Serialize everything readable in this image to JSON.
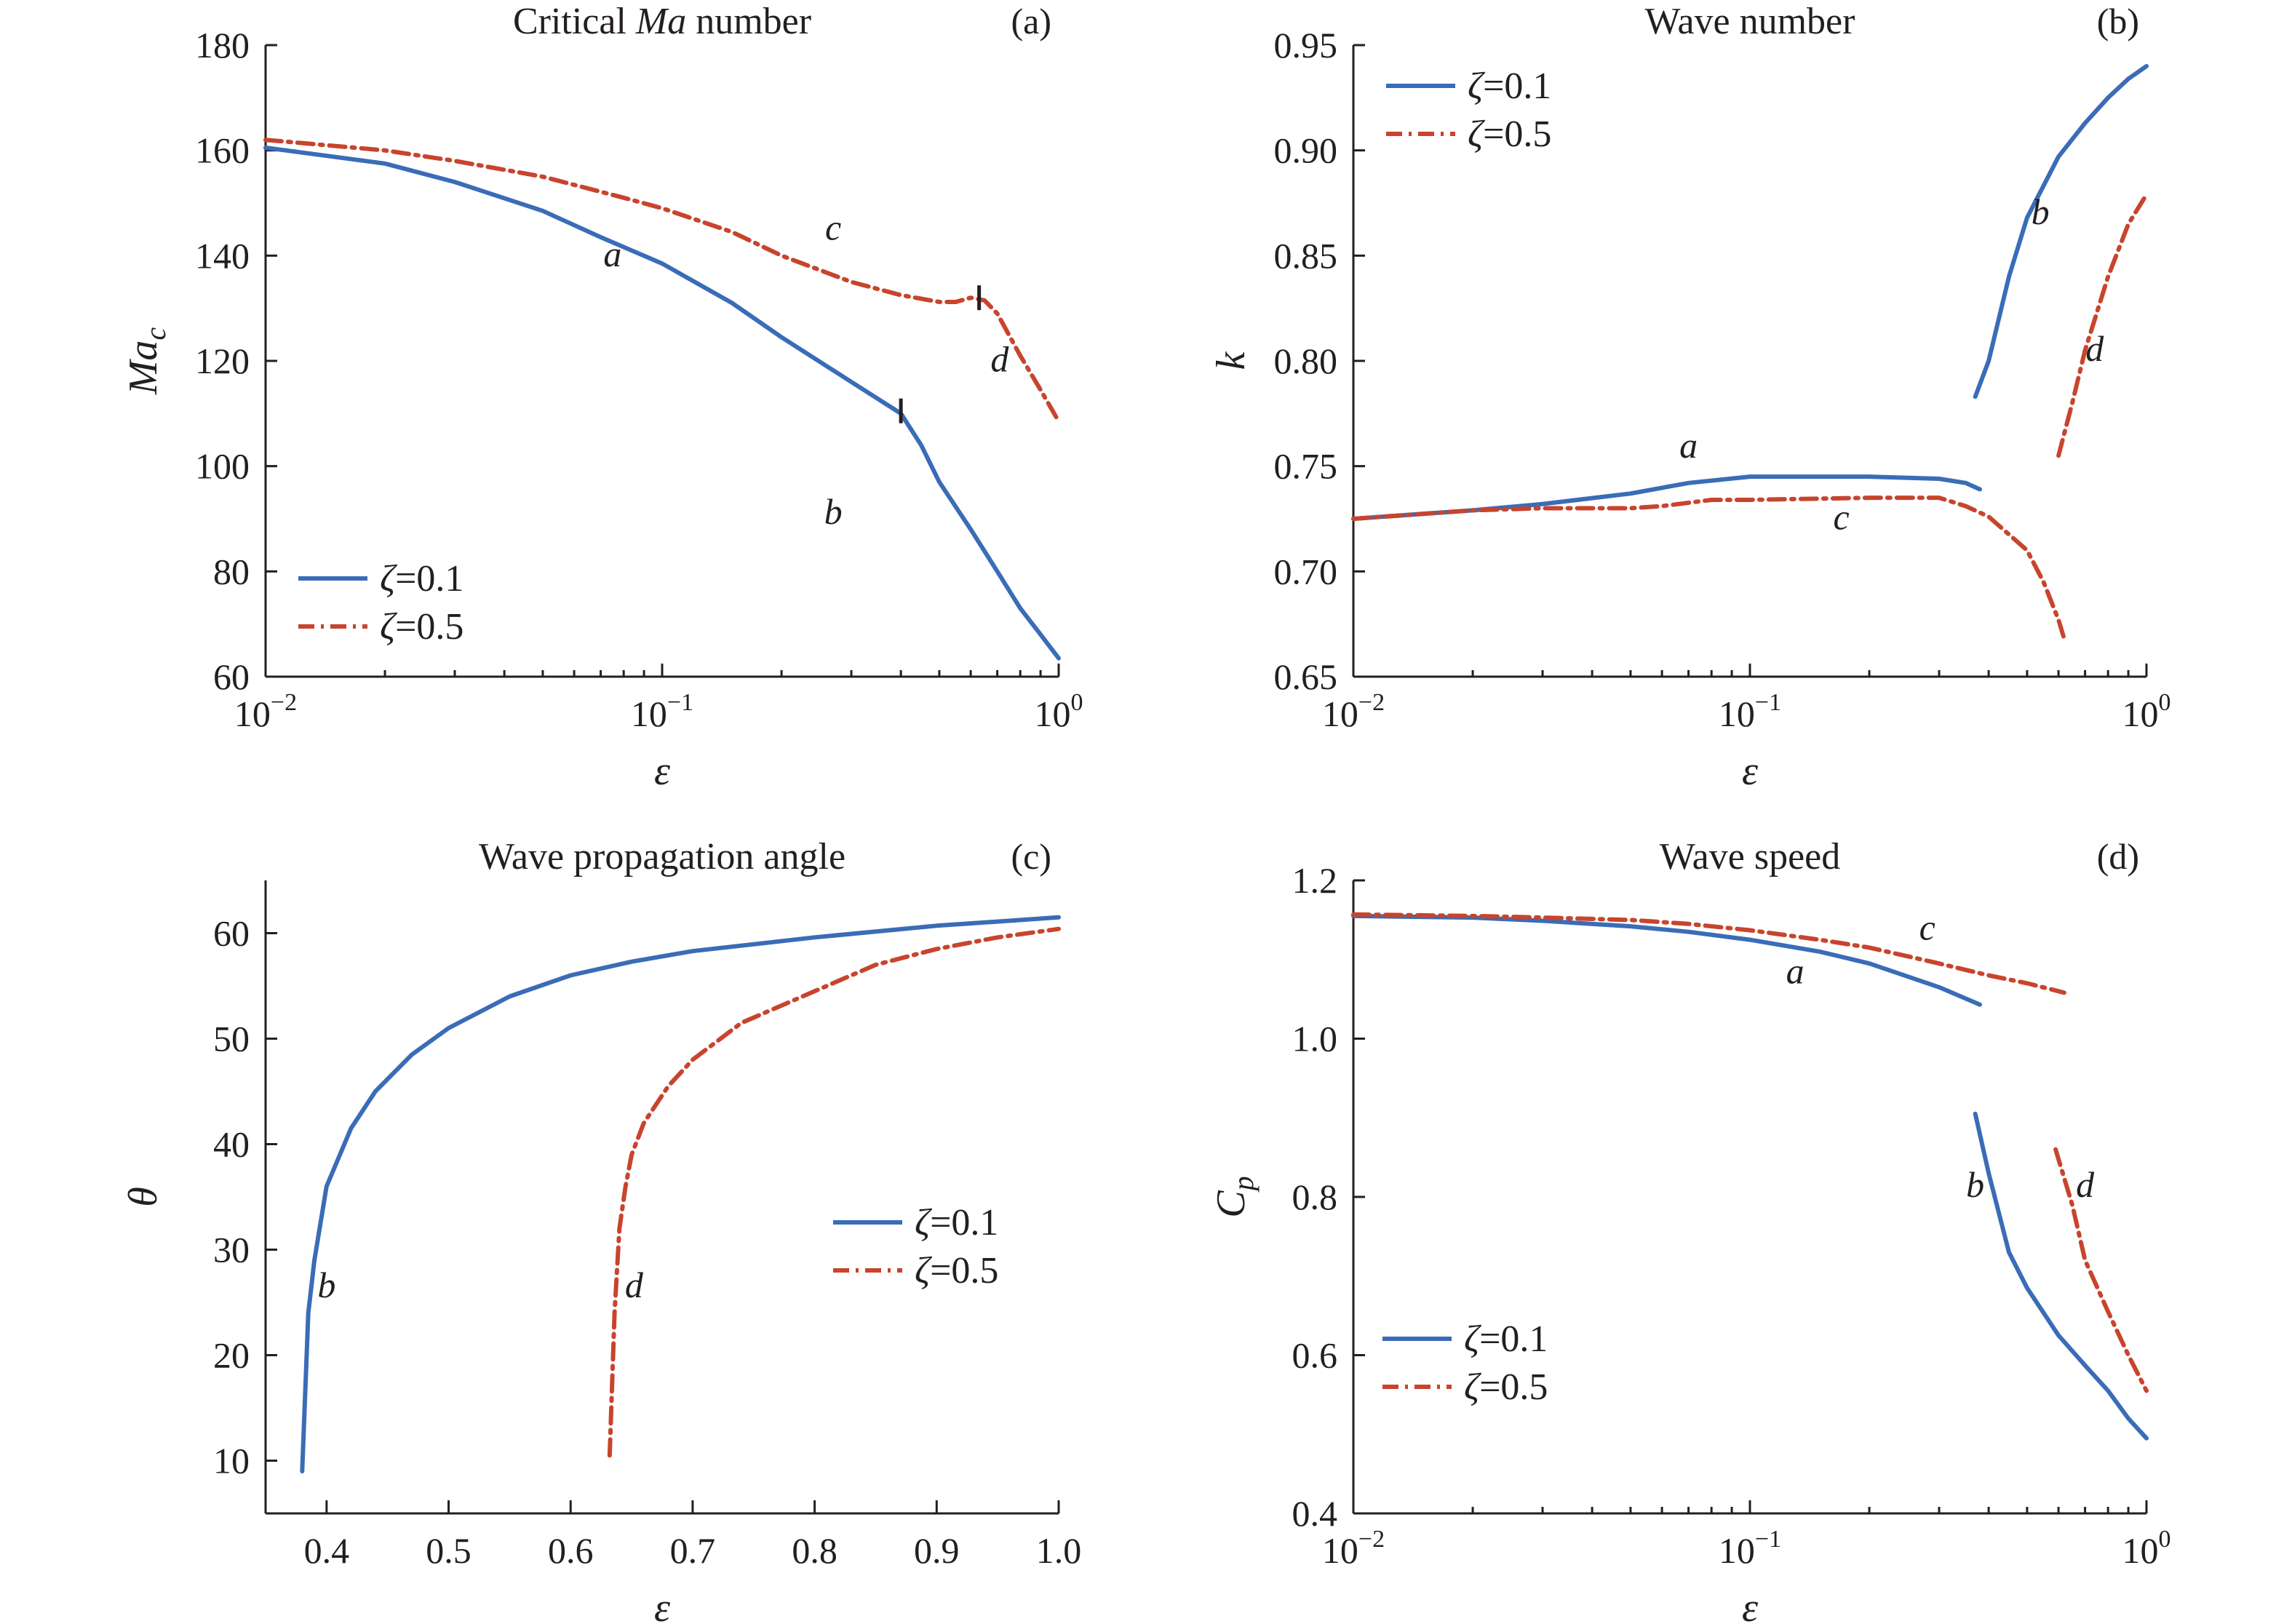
{
  "colors": {
    "zeta_0_1": "#3a6cb7",
    "zeta_0_5": "#c8442c",
    "axis": "#231f20"
  },
  "chart_data": [
    {
      "id": "a",
      "type": "line",
      "title_parts": [
        "Critical ",
        "Ma",
        " number"
      ],
      "panel_tag": "(a)",
      "xlabel": "ε",
      "ylabel": "Ma",
      "ylabel_sub": "c",
      "xscale": "log",
      "xlim": [
        0.01,
        1
      ],
      "ylim": [
        60,
        180
      ],
      "xticks": [
        {
          "value": 0.01,
          "base": "10",
          "exp": "−2"
        },
        {
          "value": 0.1,
          "base": "10",
          "exp": "−1"
        },
        {
          "value": 1,
          "base": "10",
          "exp": "0"
        }
      ],
      "yticks": [
        60,
        80,
        100,
        120,
        140,
        160,
        180
      ],
      "legend": {
        "position": "bottom-left",
        "entries": [
          "ζ=0.1",
          "ζ=0.5"
        ]
      },
      "series": [
        {
          "name": "ζ=0.1",
          "style": "solid",
          "segments": [
            [
              [
                0.01,
                160.5
              ],
              [
                0.02,
                157.5
              ],
              [
                0.03,
                154
              ],
              [
                0.05,
                148.5
              ],
              [
                0.07,
                143.5
              ],
              [
                0.1,
                138.5
              ],
              [
                0.15,
                131
              ],
              [
                0.2,
                124.5
              ],
              [
                0.3,
                116
              ],
              [
                0.4,
                110
              ],
              [
                0.45,
                104
              ],
              [
                0.5,
                97
              ],
              [
                0.6,
                88
              ],
              [
                0.7,
                80
              ],
              [
                0.8,
                73
              ],
              [
                0.9,
                68
              ],
              [
                1.0,
                63.5
              ]
            ]
          ]
        },
        {
          "name": "ζ=0.5",
          "style": "dashdot",
          "segments": [
            [
              [
                0.01,
                162
              ],
              [
                0.02,
                160
              ],
              [
                0.03,
                158
              ],
              [
                0.05,
                155
              ],
              [
                0.08,
                151
              ],
              [
                0.1,
                149
              ],
              [
                0.15,
                144.5
              ],
              [
                0.2,
                140
              ],
              [
                0.3,
                135
              ],
              [
                0.4,
                132.5
              ],
              [
                0.5,
                131.2
              ],
              [
                0.55,
                131.2
              ],
              [
                0.6,
                132
              ],
              [
                0.65,
                131.5
              ],
              [
                0.7,
                129
              ],
              [
                0.8,
                121
              ],
              [
                0.9,
                114.5
              ],
              [
                1.0,
                108.5
              ]
            ]
          ]
        }
      ],
      "markers": [
        {
          "x": 0.4,
          "y": 110.5
        },
        {
          "x": 0.63,
          "y": 132
        }
      ],
      "curve_labels": [
        {
          "text": "a",
          "x": 0.075,
          "y": 138
        },
        {
          "text": "b",
          "x": 0.27,
          "y": 89
        },
        {
          "text": "c",
          "x": 0.27,
          "y": 143
        },
        {
          "text": "d",
          "x": 0.71,
          "y": 118
        }
      ]
    },
    {
      "id": "b",
      "type": "line",
      "title_parts": [
        "Wave number"
      ],
      "panel_tag": "(b)",
      "xlabel": "ε",
      "ylabel": "k",
      "ylabel_sub": "",
      "xscale": "log",
      "xlim": [
        0.01,
        1
      ],
      "ylim": [
        0.65,
        0.95
      ],
      "xticks": [
        {
          "value": 0.01,
          "base": "10",
          "exp": "−2"
        },
        {
          "value": 0.1,
          "base": "10",
          "exp": "−1"
        },
        {
          "value": 1,
          "base": "10",
          "exp": "0"
        }
      ],
      "yticks": [
        0.65,
        0.7,
        0.75,
        0.8,
        0.85,
        0.9,
        0.95
      ],
      "ytick_labels": [
        "0.65",
        "0.70",
        "0.75",
        "0.80",
        "0.85",
        "0.90",
        "0.95"
      ],
      "legend": {
        "position": "top-left",
        "entries": [
          "ζ=0.1",
          "ζ=0.5"
        ]
      },
      "series": [
        {
          "name": "ζ=0.1",
          "style": "solid",
          "segments": [
            [
              [
                0.01,
                0.725
              ],
              [
                0.02,
                0.729
              ],
              [
                0.03,
                0.732
              ],
              [
                0.05,
                0.737
              ],
              [
                0.07,
                0.742
              ],
              [
                0.1,
                0.745
              ],
              [
                0.2,
                0.745
              ],
              [
                0.3,
                0.744
              ],
              [
                0.35,
                0.742
              ],
              [
                0.38,
                0.739
              ]
            ],
            [
              [
                0.37,
                0.783
              ],
              [
                0.4,
                0.8
              ],
              [
                0.45,
                0.84
              ],
              [
                0.5,
                0.868
              ],
              [
                0.6,
                0.897
              ],
              [
                0.7,
                0.913
              ],
              [
                0.8,
                0.925
              ],
              [
                0.9,
                0.934
              ],
              [
                1.0,
                0.94
              ]
            ]
          ]
        },
        {
          "name": "ζ=0.5",
          "style": "dashdot",
          "segments": [
            [
              [
                0.01,
                0.725
              ],
              [
                0.02,
                0.729
              ],
              [
                0.03,
                0.73
              ],
              [
                0.05,
                0.73
              ],
              [
                0.06,
                0.731
              ],
              [
                0.08,
                0.734
              ],
              [
                0.1,
                0.734
              ],
              [
                0.2,
                0.735
              ],
              [
                0.3,
                0.735
              ],
              [
                0.35,
                0.731
              ],
              [
                0.4,
                0.726
              ],
              [
                0.5,
                0.71
              ],
              [
                0.55,
                0.695
              ],
              [
                0.6,
                0.677
              ],
              [
                0.62,
                0.668
              ]
            ],
            [
              [
                0.6,
                0.755
              ],
              [
                0.65,
                0.78
              ],
              [
                0.7,
                0.805
              ],
              [
                0.8,
                0.84
              ],
              [
                0.9,
                0.865
              ],
              [
                1.0,
                0.879
              ]
            ]
          ]
        }
      ],
      "markers": [],
      "curve_labels": [
        {
          "text": "a",
          "x": 0.07,
          "y": 0.754
        },
        {
          "text": "b",
          "x": 0.54,
          "y": 0.865
        },
        {
          "text": "c",
          "x": 0.17,
          "y": 0.72
        },
        {
          "text": "d",
          "x": 0.74,
          "y": 0.8
        }
      ]
    },
    {
      "id": "c",
      "type": "line",
      "title_parts": [
        "Wave propagation angle"
      ],
      "panel_tag": "(c)",
      "xlabel": "ε",
      "ylabel": "θ",
      "ylabel_sub": "",
      "xscale": "linear",
      "xlim": [
        0.35,
        1.0
      ],
      "ylim": [
        5,
        65
      ],
      "xticks": [
        {
          "value": 0.4,
          "label": "0.4"
        },
        {
          "value": 0.5,
          "label": "0.5"
        },
        {
          "value": 0.6,
          "label": "0.6"
        },
        {
          "value": 0.7,
          "label": "0.7"
        },
        {
          "value": 0.8,
          "label": "0.8"
        },
        {
          "value": 0.9,
          "label": "0.9"
        },
        {
          "value": 1.0,
          "label": "1.0"
        }
      ],
      "yticks": [
        10,
        20,
        30,
        40,
        50,
        60
      ],
      "legend": {
        "position": "middle-right",
        "entries": [
          "ζ=0.1",
          "ζ=0.5"
        ]
      },
      "series": [
        {
          "name": "ζ=0.1",
          "style": "solid",
          "segments": [
            [
              [
                0.38,
                9
              ],
              [
                0.385,
                24
              ],
              [
                0.39,
                29
              ],
              [
                0.4,
                36
              ],
              [
                0.42,
                41.5
              ],
              [
                0.44,
                45
              ],
              [
                0.47,
                48.5
              ],
              [
                0.5,
                51
              ],
              [
                0.55,
                54
              ],
              [
                0.6,
                56
              ],
              [
                0.65,
                57.3
              ],
              [
                0.7,
                58.3
              ],
              [
                0.8,
                59.6
              ],
              [
                0.9,
                60.7
              ],
              [
                1.0,
                61.5
              ]
            ]
          ]
        },
        {
          "name": "ζ=0.5",
          "style": "dashdot",
          "segments": [
            [
              [
                0.632,
                10.5
              ],
              [
                0.636,
                24
              ],
              [
                0.64,
                32
              ],
              [
                0.645,
                36
              ],
              [
                0.65,
                39
              ],
              [
                0.66,
                42
              ],
              [
                0.68,
                45.5
              ],
              [
                0.7,
                48
              ],
              [
                0.74,
                51.5
              ],
              [
                0.8,
                54.5
              ],
              [
                0.85,
                57
              ],
              [
                0.9,
                58.5
              ],
              [
                0.95,
                59.6
              ],
              [
                1.0,
                60.4
              ]
            ]
          ]
        }
      ],
      "markers": [],
      "curve_labels": [
        {
          "text": "b",
          "x": 0.4,
          "y": 25.5
        },
        {
          "text": "d",
          "x": 0.652,
          "y": 25.5
        }
      ]
    },
    {
      "id": "d",
      "type": "line",
      "title_parts": [
        "Wave speed"
      ],
      "panel_tag": "(d)",
      "xlabel": "ε",
      "ylabel": "C",
      "ylabel_sub": "p",
      "xscale": "log",
      "xlim": [
        0.01,
        1
      ],
      "ylim": [
        0.4,
        1.2
      ],
      "xticks": [
        {
          "value": 0.01,
          "base": "10",
          "exp": "−2"
        },
        {
          "value": 0.1,
          "base": "10",
          "exp": "−1"
        },
        {
          "value": 1,
          "base": "10",
          "exp": "0"
        }
      ],
      "yticks": [
        0.4,
        0.6,
        0.8,
        1.0,
        1.2
      ],
      "ytick_labels": [
        "0.4",
        "0.6",
        "0.8",
        "1.0",
        "1.2"
      ],
      "legend": {
        "position": "bottom-left",
        "entries": [
          "ζ=0.1",
          "ζ=0.5"
        ]
      },
      "series": [
        {
          "name": "ζ=0.1",
          "style": "solid",
          "segments": [
            [
              [
                0.01,
                1.155
              ],
              [
                0.02,
                1.153
              ],
              [
                0.03,
                1.149
              ],
              [
                0.05,
                1.142
              ],
              [
                0.07,
                1.135
              ],
              [
                0.1,
                1.125
              ],
              [
                0.15,
                1.11
              ],
              [
                0.2,
                1.095
              ],
              [
                0.3,
                1.065
              ],
              [
                0.38,
                1.043
              ]
            ],
            [
              [
                0.37,
                0.905
              ],
              [
                0.4,
                0.83
              ],
              [
                0.45,
                0.73
              ],
              [
                0.5,
                0.685
              ],
              [
                0.6,
                0.625
              ],
              [
                0.7,
                0.587
              ],
              [
                0.8,
                0.555
              ],
              [
                0.9,
                0.52
              ],
              [
                1.0,
                0.495
              ]
            ]
          ]
        },
        {
          "name": "ζ=0.5",
          "style": "dashdot",
          "segments": [
            [
              [
                0.01,
                1.157
              ],
              [
                0.02,
                1.155
              ],
              [
                0.03,
                1.153
              ],
              [
                0.05,
                1.15
              ],
              [
                0.07,
                1.145
              ],
              [
                0.1,
                1.137
              ],
              [
                0.15,
                1.125
              ],
              [
                0.2,
                1.115
              ],
              [
                0.3,
                1.095
              ],
              [
                0.4,
                1.08
              ],
              [
                0.5,
                1.07
              ],
              [
                0.6,
                1.06
              ],
              [
                0.62,
                1.058
              ]
            ],
            [
              [
                0.59,
                0.86
              ],
              [
                0.65,
                0.79
              ],
              [
                0.7,
                0.72
              ],
              [
                0.8,
                0.655
              ],
              [
                0.9,
                0.6
              ],
              [
                1.0,
                0.555
              ]
            ]
          ]
        }
      ],
      "markers": [],
      "curve_labels": [
        {
          "text": "a",
          "x": 0.13,
          "y": 1.07
        },
        {
          "text": "b",
          "x": 0.37,
          "y": 0.8
        },
        {
          "text": "c",
          "x": 0.28,
          "y": 1.125
        },
        {
          "text": "d",
          "x": 0.7,
          "y": 0.8
        }
      ]
    }
  ]
}
